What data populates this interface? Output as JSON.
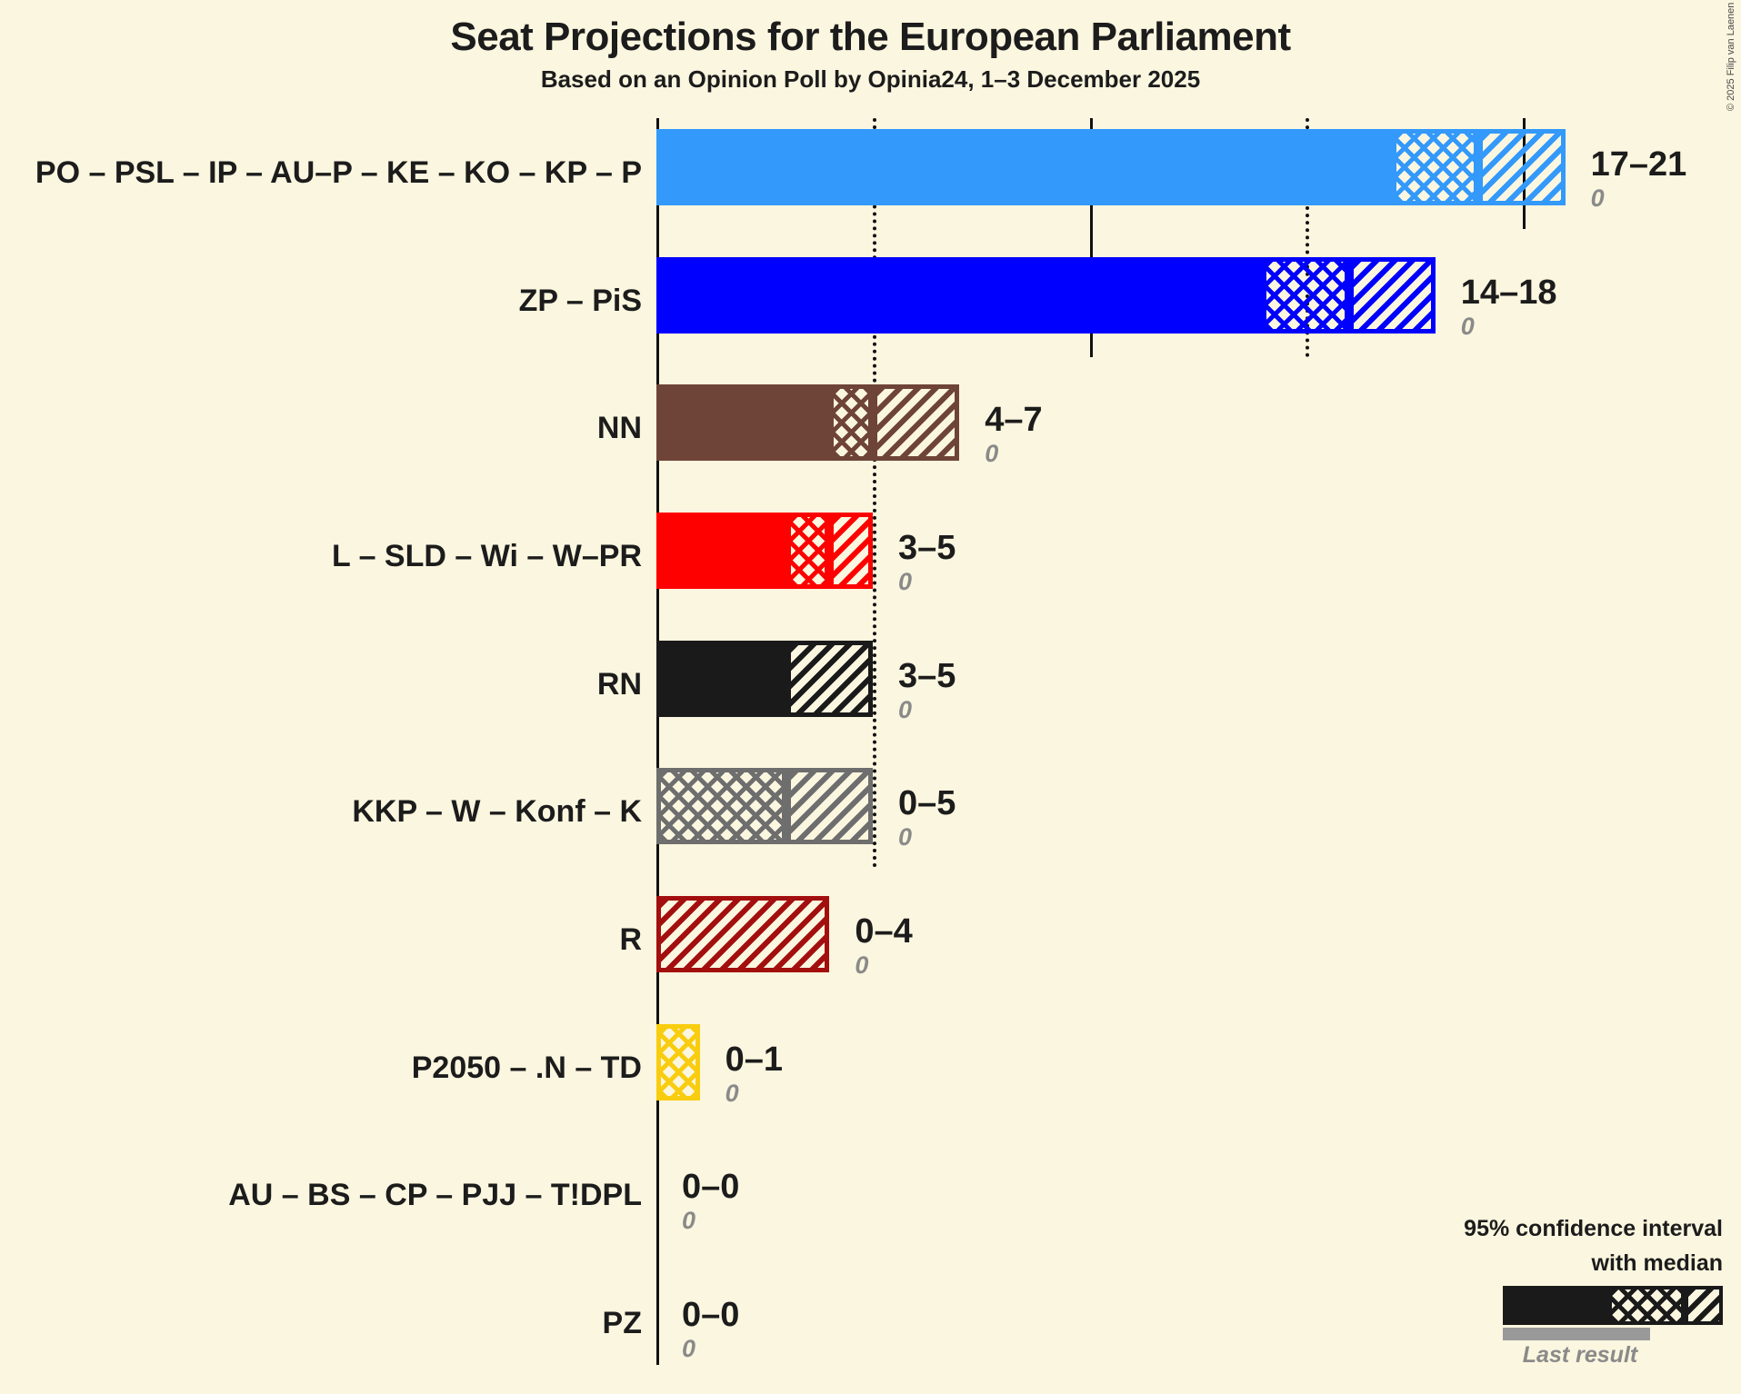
{
  "title": "Seat Projections for the European Parliament",
  "subtitle": "Based on an Opinion Poll by Opinia24, 1–3 December 2025",
  "copyright": "© 2025 Filip van Laenen",
  "legend": {
    "ci_line1": "95% confidence interval",
    "ci_line2": "with median",
    "last_result_label": "Last result"
  },
  "colors": {
    "background": "#FBF6DF",
    "grid": "#111111",
    "text": "#1C1C1C",
    "muted_text": "#8A8A8A",
    "legend_bar": "#1A1A1A",
    "last_result_bar": "#999999"
  },
  "chart_data": {
    "type": "bar",
    "orientation": "horizontal",
    "unit": "seats",
    "x_axis": {
      "min": 0,
      "max": 21,
      "solid_gridlines": [
        10,
        20
      ],
      "dotted_gridlines": [
        5,
        15
      ],
      "tick_labels_shown": false
    },
    "rows": [
      {
        "label": "PO – PSL – IP – AU–P – KE – KO – KP – P",
        "ci_low": 17,
        "median": 19,
        "ci_high": 21,
        "last_result": 0,
        "value_label": "17–21",
        "color": "#3399FB"
      },
      {
        "label": "ZP – PiS",
        "ci_low": 14,
        "median": 16,
        "ci_high": 18,
        "last_result": 0,
        "value_label": "14–18",
        "color": "#0000FE"
      },
      {
        "label": "NN",
        "ci_low": 4,
        "median": 5,
        "ci_high": 7,
        "last_result": 0,
        "value_label": "4–7",
        "color": "#6F4438"
      },
      {
        "label": "L – SLD – Wi – W–PR",
        "ci_low": 3,
        "median": 4,
        "ci_high": 5,
        "last_result": 0,
        "value_label": "3–5",
        "color": "#FE0000"
      },
      {
        "label": "RN",
        "ci_low": 3,
        "median": 3,
        "ci_high": 5,
        "last_result": 0,
        "value_label": "3–5",
        "color": "#1A1A1A"
      },
      {
        "label": "KKP – W – Konf – K",
        "ci_low": 0,
        "median": 3,
        "ci_high": 5,
        "last_result": 0,
        "value_label": "0–5",
        "color": "#6E6E6E"
      },
      {
        "label": "R",
        "ci_low": 0,
        "median": 0,
        "ci_high": 4,
        "last_result": 0,
        "value_label": "0–4",
        "color": "#A30F0F"
      },
      {
        "label": "P2050 – .N – TD",
        "ci_low": 0,
        "median": 1,
        "ci_high": 1,
        "last_result": 0,
        "value_label": "0–1",
        "color": "#F9CD0F"
      },
      {
        "label": "AU – BS – CP – PJJ – T!DPL",
        "ci_low": 0,
        "median": 0,
        "ci_high": 0,
        "last_result": 0,
        "value_label": "0–0",
        "color": "#1A1A1A"
      },
      {
        "label": "PZ",
        "ci_low": 0,
        "median": 0,
        "ci_high": 0,
        "last_result": 0,
        "value_label": "0–0",
        "color": "#1A1A1A"
      }
    ]
  }
}
